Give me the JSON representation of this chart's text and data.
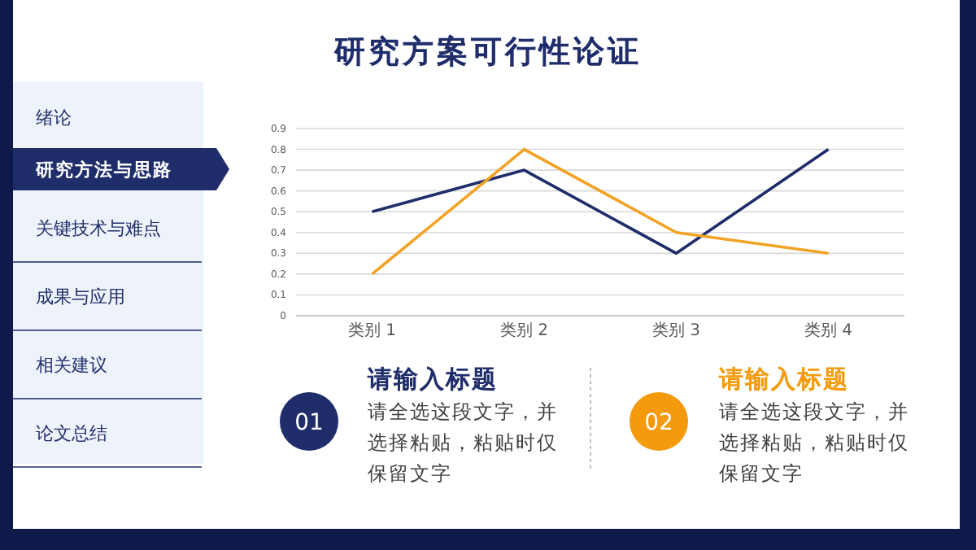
{
  "chart_data": [
    {
      "type": "line",
      "title": "研究方案可行性论证",
      "categories": [
        "类别 1",
        "类别 2",
        "类别 3",
        "类别 4"
      ],
      "series": [
        {
          "color": "#1f2d6b",
          "values": [
            0.5,
            0.7,
            0.3,
            0.8
          ]
        },
        {
          "color": "#f2a325",
          "values": [
            0.2,
            0.8,
            0.4,
            0.3
          ]
        }
      ],
      "ylim": [
        0,
        0.9
      ],
      "yticks": [
        0,
        0.1,
        0.2,
        0.3,
        0.4,
        0.5,
        0.6,
        0.7,
        0.8,
        0.9
      ],
      "grid": "y"
    },
    {
      "type": "other",
      "annotations": [
        "绪论",
        "研究方法与思路",
        "关键技术与难点",
        "成果与应用",
        "相关建议",
        "论文总结",
        "01",
        "请输入标题",
        "请全选这段文字，并",
        "选择粘贴，粘贴时仅",
        "保留文字",
        "02",
        "请输入标题",
        "请全选这段文字，并",
        "选择粘贴，粘贴时仅",
        "保留文字"
      ]
    }
  ]
}
